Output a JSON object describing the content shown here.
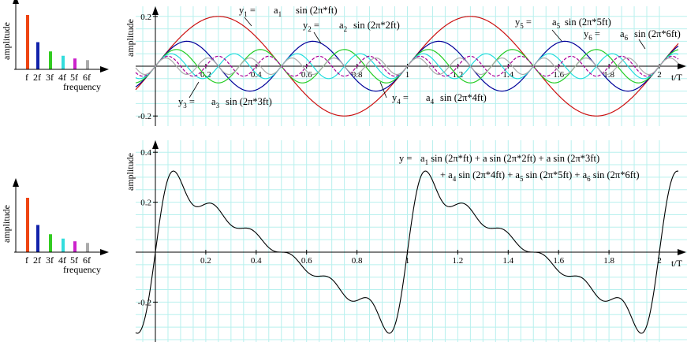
{
  "chart_data": [
    {
      "type": "bar",
      "categories": [
        "f",
        "2f",
        "3f",
        "4f",
        "5f",
        "6f"
      ],
      "values": [
        1.0,
        0.5,
        0.33,
        0.25,
        0.2,
        0.17
      ],
      "colors": [
        "#ee4411",
        "#1122aa",
        "#33cc22",
        "#33dddd",
        "#cc22cc",
        "#aaaaaa"
      ],
      "ylabel": "amplitude",
      "xlabel": "frequency"
    },
    {
      "type": "line",
      "xlabel": "t/T",
      "ylabel": "amplitude",
      "xlim": [
        0,
        2.03
      ],
      "ylim": [
        -0.23,
        0.23
      ],
      "x_ticks": [
        "0.2",
        "0.4",
        "0.6",
        "0.8",
        "1",
        "1.2",
        "1.4",
        "1.6",
        "1.8",
        "2"
      ],
      "x_tick_values": [
        0.2,
        0.4,
        0.6,
        0.8,
        1,
        1.2,
        1.4,
        1.6,
        1.8,
        2
      ],
      "y_ticks": [
        "0.2",
        "-0.2"
      ],
      "y_tick_values": [
        0.2,
        -0.2
      ],
      "grid": true,
      "series": [
        {
          "harmonic": 1,
          "amplitude": 0.2,
          "color": "#cc1111",
          "dashed": false
        },
        {
          "harmonic": 2,
          "amplitude": 0.1,
          "color": "#000099",
          "dashed": false
        },
        {
          "harmonic": 3,
          "amplitude": 0.067,
          "color": "#22cc22",
          "dashed": false
        },
        {
          "harmonic": 4,
          "amplitude": 0.05,
          "color": "#22dddd",
          "dashed": false
        },
        {
          "harmonic": 5,
          "amplitude": 0.04,
          "color": "#aa0099",
          "dashed": true
        },
        {
          "harmonic": 6,
          "amplitude": 0.033,
          "color": "#aaaaaa",
          "dashed": false
        }
      ],
      "annotations": [
        {
          "y": "y",
          "ysub": "1",
          "a": "a",
          "asub": "1",
          "expr": "sin (2π*ft)"
        },
        {
          "y": "y",
          "ysub": "2",
          "a": "a",
          "asub": "2",
          "expr": "sin (2π*2ft)"
        },
        {
          "y": "y",
          "ysub": "3",
          "a": "a",
          "asub": "3",
          "expr": "sin (2π*3ft)"
        },
        {
          "y": "y",
          "ysub": "4",
          "a": "a",
          "asub": "4",
          "expr": "sin (2π*4ft)"
        },
        {
          "y": "y",
          "ysub": "5",
          "a": "a",
          "asub": "5",
          "expr": "sin (2π*5ft)"
        },
        {
          "y": "y",
          "ysub": "6",
          "a": "a",
          "asub": "6",
          "expr": "sin (2π*6ft)"
        }
      ],
      "equals": "="
    },
    {
      "type": "bar",
      "categories": [
        "f",
        "2f",
        "3f",
        "4f",
        "5f",
        "6f"
      ],
      "values": [
        1.0,
        0.5,
        0.33,
        0.25,
        0.2,
        0.17
      ],
      "colors": [
        "#ee4411",
        "#1122aa",
        "#33cc22",
        "#33dddd",
        "#cc22cc",
        "#aaaaaa"
      ],
      "ylabel": "amplitude",
      "xlabel": "frequency"
    },
    {
      "type": "line",
      "xlabel": "t/T",
      "ylabel": "amplitude",
      "xlim": [
        0,
        2.03
      ],
      "ylim": [
        -0.34,
        0.4
      ],
      "x_ticks": [
        "0.2",
        "0.4",
        "0.6",
        "0.8",
        "1",
        "1.2",
        "1.4",
        "1.6",
        "1.8",
        "2"
      ],
      "x_tick_values": [
        0.2,
        0.4,
        0.6,
        0.8,
        1,
        1.2,
        1.4,
        1.6,
        1.8,
        2
      ],
      "y_ticks": [
        "0.4",
        "0.2",
        "-0.2"
      ],
      "y_tick_values": [
        0.4,
        0.2,
        -0.2
      ],
      "grid": true,
      "series": [
        {
          "name": "",
          "color": "#000000",
          "sum_of_harmonics": [
            1,
            2,
            3,
            4,
            5,
            6
          ]
        }
      ],
      "equation_line1": {
        "y": "y",
        "eq": "=",
        "terms": [
          {
            "a": "a",
            "sub": "1",
            "expr": "sin (2π*ft) + a"
          },
          {
            "a": "",
            "sub": "",
            "expr": " sin (2π*2ft) + a"
          },
          {
            "a": "",
            "sub": "",
            "expr": " sin (2π*3ft)"
          }
        ]
      },
      "equation_line2": {
        "terms": [
          {
            "a": "+ a",
            "sub": "4",
            "expr": "sin (2π*4ft) + a"
          },
          {
            "a": "",
            "sub": "5",
            "expr": "sin (2π*5ft) + a"
          },
          {
            "a": "",
            "sub": "6",
            "expr": "sin (2π*6ft)"
          }
        ]
      }
    }
  ]
}
